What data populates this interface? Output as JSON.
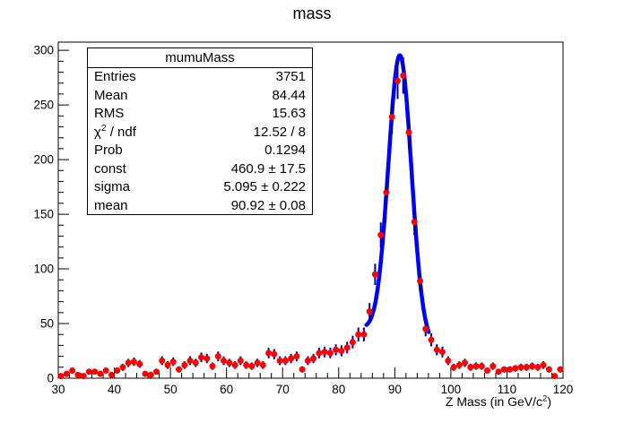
{
  "title": "mass",
  "colors": {
    "background": "#ffffff",
    "frame": "#000000",
    "marker": "#ff0000",
    "error_bar": "#000099",
    "fit_line": "#0000ff",
    "text": "#000000"
  },
  "stats": {
    "title": "mumuMass",
    "rows": [
      {
        "label": {
          "prefix": "Entries",
          "sup": "",
          "suffix": ""
        },
        "value": "3751"
      },
      {
        "label": {
          "prefix": "Mean",
          "sup": "",
          "suffix": ""
        },
        "value": "84.44"
      },
      {
        "label": {
          "prefix": "RMS",
          "sup": "",
          "suffix": ""
        },
        "value": "15.63"
      },
      {
        "label": {
          "prefix": "χ",
          "sup": "2",
          "suffix": " / ndf"
        },
        "value": "12.52 / 8"
      },
      {
        "label": {
          "prefix": "Prob",
          "sup": "",
          "suffix": ""
        },
        "value": "0.1294"
      },
      {
        "label": {
          "prefix": "const",
          "sup": "",
          "suffix": ""
        },
        "value": "460.9 ± 17.5"
      },
      {
        "label": {
          "prefix": "sigma",
          "sup": "",
          "suffix": ""
        },
        "value": "5.095 ± 0.222"
      },
      {
        "label": {
          "prefix": "mean",
          "sup": "",
          "suffix": ""
        },
        "value": "90.92 ± 0.08"
      }
    ]
  },
  "axes": {
    "x_title": {
      "prefix": "Z Mass (in GeV/c",
      "sup": "2",
      "suffix": ")"
    }
  },
  "chart_data": {
    "type": "scatter",
    "title": "mass",
    "xlabel": "Z Mass (in GeV/c^2)",
    "ylabel": "",
    "grid": false,
    "legend": "none",
    "xlim": [
      30,
      120
    ],
    "ylim": [
      0,
      307.5
    ],
    "x_major_step": 10,
    "x_minor_step": 2,
    "y_major_step": 50,
    "y_minor_step": 10,
    "bin_width": 1,
    "error_model": "sqrt(N)",
    "x": [
      30.5,
      31.5,
      32.5,
      33.5,
      34.5,
      35.5,
      36.5,
      37.5,
      38.5,
      39.5,
      40.5,
      41.5,
      42.5,
      43.5,
      44.5,
      45.5,
      46.5,
      47.5,
      48.5,
      49.5,
      50.5,
      51.5,
      52.5,
      53.5,
      54.5,
      55.5,
      56.5,
      57.5,
      58.5,
      59.5,
      60.5,
      61.5,
      62.5,
      63.5,
      64.5,
      65.5,
      66.5,
      67.5,
      68.5,
      69.5,
      70.5,
      71.5,
      72.5,
      73.5,
      74.5,
      75.5,
      76.5,
      77.5,
      78.5,
      79.5,
      80.5,
      81.5,
      82.5,
      83.5,
      84.5,
      85.5,
      86.5,
      87.5,
      88.5,
      89.5,
      90.5,
      91.5,
      92.5,
      93.5,
      94.5,
      95.5,
      96.5,
      97.5,
      98.5,
      99.5,
      100.5,
      101.5,
      102.5,
      103.5,
      104.5,
      105.5,
      106.5,
      107.5,
      108.5,
      109.5,
      110.5,
      111.5,
      112.5,
      113.5,
      114.5,
      115.5,
      116.5,
      117.5,
      118.5,
      119.5
    ],
    "y": [
      2,
      4,
      7,
      3,
      2,
      6,
      6,
      4,
      7,
      3,
      7,
      10,
      14,
      15,
      13,
      4,
      3,
      6,
      16,
      12,
      15,
      8,
      12,
      16,
      14,
      19,
      18,
      11,
      20,
      16,
      14,
      12,
      16,
      12,
      11,
      14,
      12,
      23,
      22,
      16,
      16,
      18,
      20,
      8,
      16,
      18,
      23,
      24,
      23,
      26,
      25,
      28,
      33,
      40,
      40,
      61,
      95,
      131,
      170,
      239,
      272,
      277,
      225,
      143,
      89,
      45,
      35,
      26,
      24,
      16,
      10,
      12,
      14,
      10,
      11,
      11,
      7,
      11,
      6,
      8,
      8,
      9,
      10,
      10,
      11,
      10,
      12,
      8,
      2,
      8
    ],
    "fit": {
      "model": "gaussian_plus_linear_background",
      "amplitude": 258,
      "mean": 90.92,
      "sigma_draw": 2.05,
      "bg_start": {
        "x": 85,
        "y": 45
      },
      "bg_end": {
        "x": 96,
        "y": 31
      },
      "range": [
        84.95,
        96.05
      ],
      "stats_const": "460.9 ± 17.5",
      "stats_sigma": "5.095 ± 0.222",
      "stats_mean": "90.92 ± 0.08"
    }
  }
}
